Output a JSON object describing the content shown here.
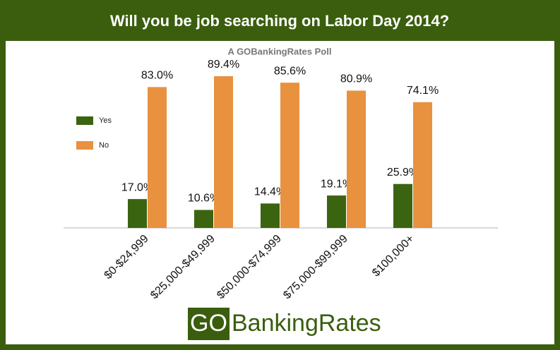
{
  "chart_data": {
    "type": "bar",
    "title": "Will you be job searching on Labor Day 2014?",
    "subtitle": "A GOBankingRates Poll",
    "categories": [
      "$0-$24,999",
      "$25,000-$49,999",
      "$50,000-$74,999",
      "$75,000-$99,999",
      "$100,000+"
    ],
    "series": [
      {
        "name": "Yes",
        "color": "#3b6410",
        "values": [
          17.0,
          10.6,
          14.4,
          19.1,
          25.9
        ],
        "value_labels": [
          "17.0%",
          "10.6%",
          "14.4%",
          "19.1%",
          "25.9%"
        ]
      },
      {
        "name": "No",
        "color": "#e8913f",
        "values": [
          83.0,
          89.4,
          85.6,
          80.9,
          74.1
        ],
        "value_labels": [
          "83.0%",
          "89.4%",
          "85.6%",
          "80.9%",
          "74.1%"
        ]
      }
    ],
    "ylim": [
      0,
      100
    ],
    "grid": false,
    "legend": "left"
  },
  "logo": {
    "prefix": "GO",
    "name": "BankingRates"
  }
}
